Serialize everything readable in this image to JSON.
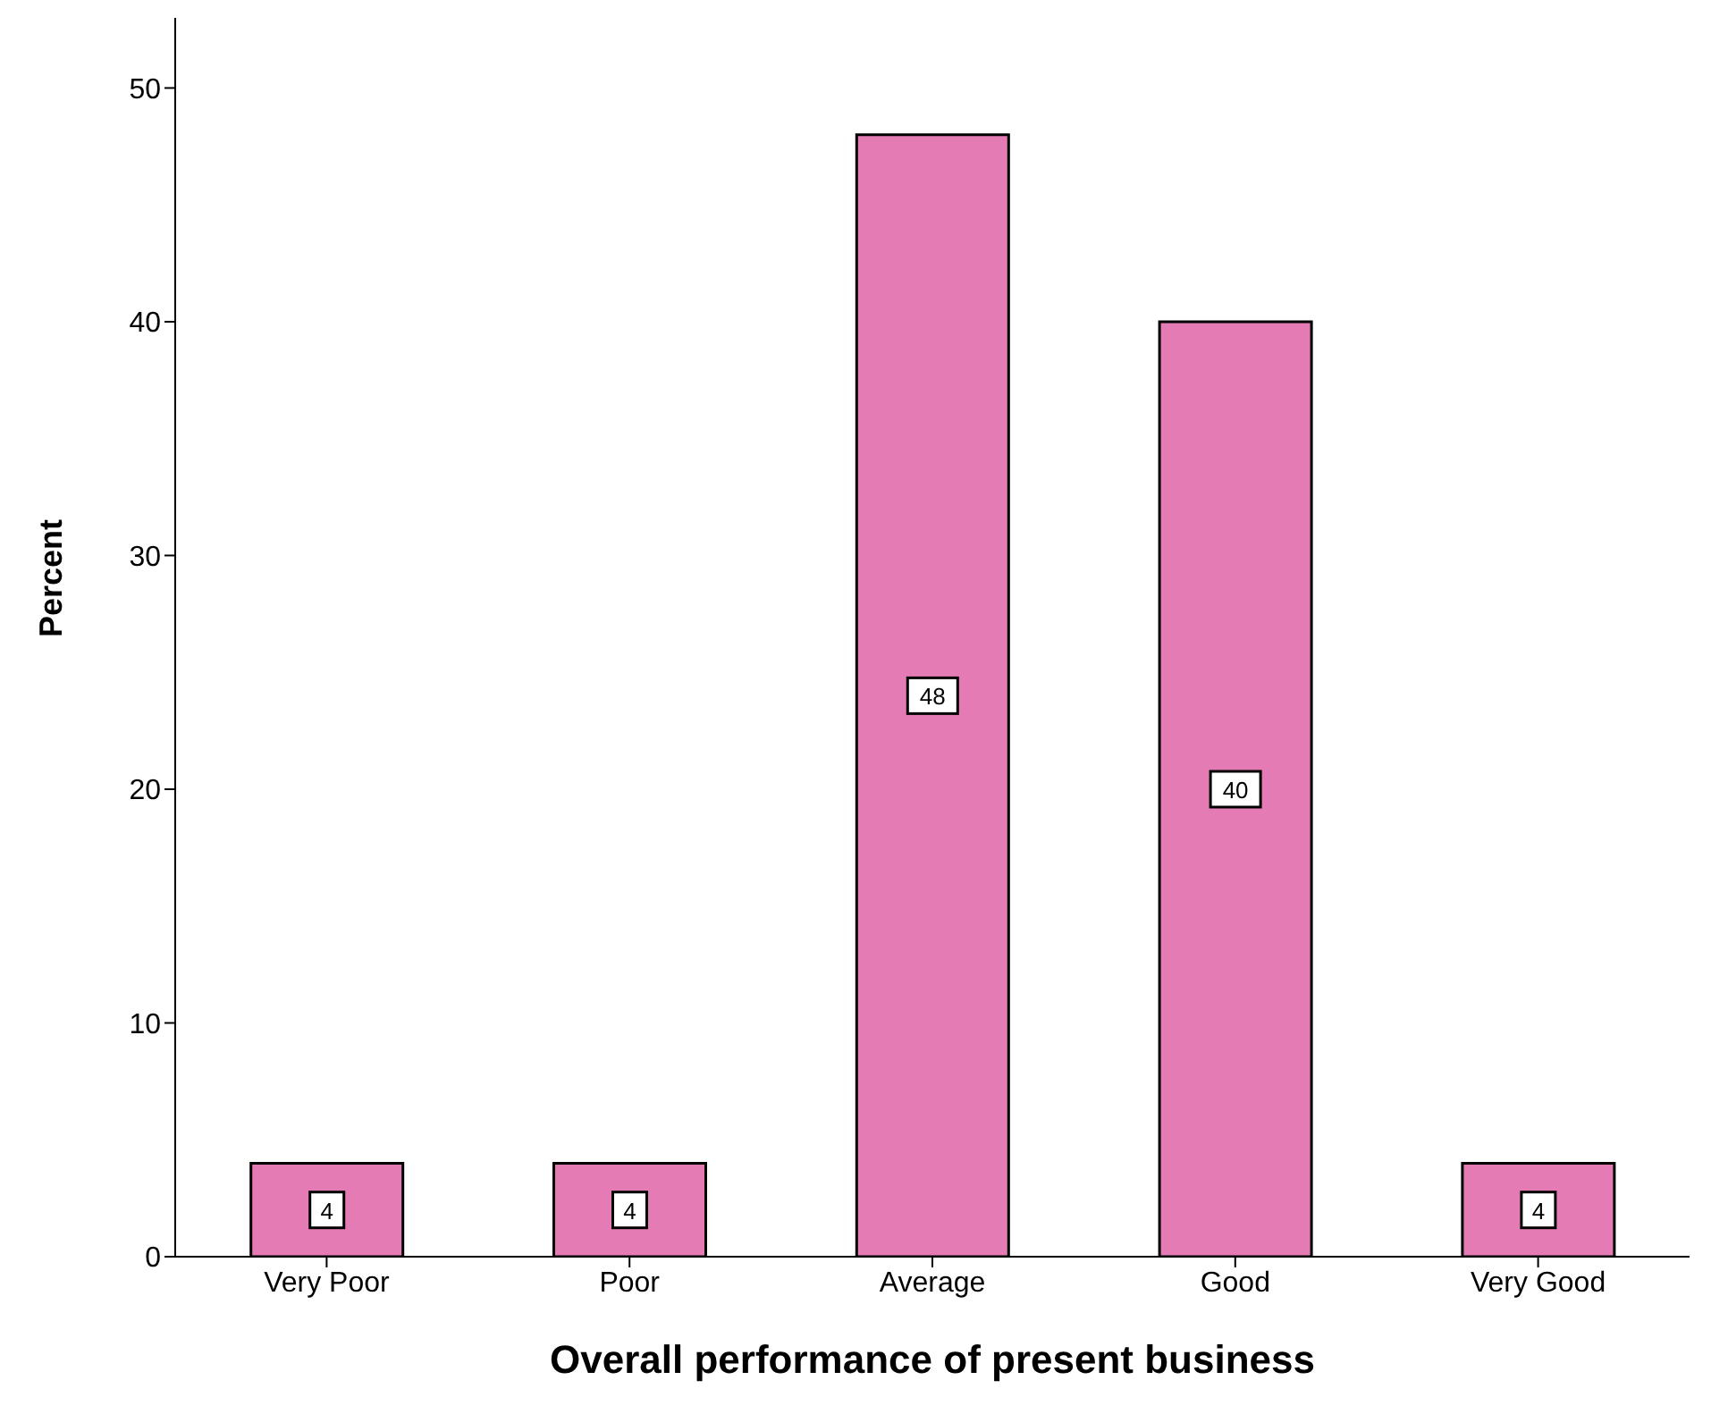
{
  "chart_data": {
    "type": "bar",
    "xlabel": "Overall performance of present business",
    "ylabel": "Percent",
    "categories": [
      "Very Poor",
      "Poor",
      "Average",
      "Good",
      "Very Good"
    ],
    "values": [
      4,
      4,
      48,
      40,
      4
    ],
    "color": "#e57bb5",
    "ylim": [
      0,
      53
    ],
    "yticks": [
      0,
      10,
      20,
      30,
      40,
      50
    ],
    "data_labels": true
  }
}
